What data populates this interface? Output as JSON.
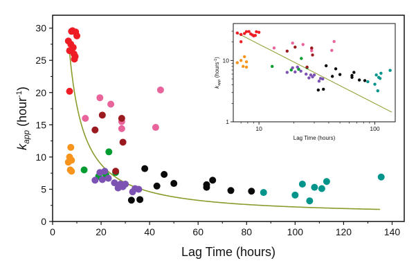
{
  "chart_data": [
    {
      "type": "scatter",
      "xlabel": "Lag Time (hours)",
      "ylabel": "k",
      "ylabel_sub": "app",
      "ylabel_unit_open": " (hour",
      "ylabel_unit_sup": "-1",
      "ylabel_unit_close": ")",
      "xlim": [
        0,
        145
      ],
      "ylim": [
        0,
        32
      ],
      "xticks": [
        "0",
        "20",
        "40",
        "60",
        "80",
        "100",
        "120",
        "140"
      ],
      "yticks": [
        "0",
        "5",
        "10",
        "15",
        "20",
        "25",
        "30"
      ],
      "colors": {
        "red": "#ee1c24",
        "orange": "#f7941d",
        "green": "#009c2f",
        "pink": "#e8649b",
        "darkred": "#9b1a20",
        "purple": "#7c52b3",
        "black": "#0a0a0a",
        "teal": "#00948a",
        "curve": "#8c9a2b"
      },
      "series": [
        {
          "color": "red",
          "points": [
            [
              6.5,
              28
            ],
            [
              7,
              26.5
            ],
            [
              7.5,
              27.5
            ],
            [
              7.8,
              29.5
            ],
            [
              8.2,
              29.6
            ],
            [
              8.5,
              27
            ],
            [
              8.8,
              26
            ],
            [
              9,
              25.2
            ],
            [
              9.3,
              25.6
            ],
            [
              9.5,
              29.4
            ],
            [
              10,
              28.8
            ],
            [
              7,
              20.2
            ]
          ]
        },
        {
          "color": "orange",
          "points": [
            [
              6.5,
              9.2
            ],
            [
              7,
              10
            ],
            [
              7.5,
              11.5
            ],
            [
              7.3,
              8
            ],
            [
              7.8,
              7.8
            ],
            [
              7.8,
              9.5
            ]
          ]
        },
        {
          "color": "green",
          "points": [
            [
              13,
              8
            ],
            [
              19,
              7
            ],
            [
              22,
              7.2
            ],
            [
              23.2,
              10.8
            ],
            [
              26,
              7.6
            ]
          ]
        },
        {
          "color": "pink",
          "points": [
            [
              13.5,
              16
            ],
            [
              19.5,
              19.2
            ],
            [
              24,
              18.2
            ],
            [
              28.5,
              15.5
            ],
            [
              28.5,
              14.4
            ],
            [
              42.5,
              14.6
            ],
            [
              44.5,
              20.4
            ]
          ]
        },
        {
          "color": "darkred",
          "points": [
            [
              17.5,
              14.2
            ],
            [
              20.5,
              16.5
            ],
            [
              26,
              7.8
            ],
            [
              28.5,
              16
            ],
            [
              29,
              12.3
            ]
          ]
        },
        {
          "color": "purple",
          "points": [
            [
              17.5,
              6.4
            ],
            [
              19.5,
              7.6
            ],
            [
              20.5,
              6.5
            ],
            [
              21.5,
              7.8
            ],
            [
              23,
              6.7
            ],
            [
              25.5,
              6
            ],
            [
              27,
              5.2
            ],
            [
              28,
              5.8
            ],
            [
              29,
              5.4
            ],
            [
              30,
              5.8
            ],
            [
              33,
              4.6
            ],
            [
              34,
              5.1
            ],
            [
              35.5,
              5
            ]
          ]
        },
        {
          "color": "black",
          "points": [
            [
              32.5,
              3.3
            ],
            [
              36,
              3.4
            ],
            [
              38,
              8.2
            ],
            [
              43,
              5.5
            ],
            [
              46,
              7.3
            ],
            [
              50,
              5.9
            ],
            [
              63.5,
              5.3
            ],
            [
              63.5,
              5.7
            ],
            [
              66,
              6.4
            ],
            [
              73.5,
              4.8
            ],
            [
              82,
              4.7
            ]
          ]
        },
        {
          "color": "teal",
          "points": [
            [
              87,
              4.5
            ],
            [
              100,
              4.1
            ],
            [
              103,
              5.8
            ],
            [
              106,
              3.2
            ],
            [
              108,
              5.3
            ],
            [
              111,
              5.1
            ],
            [
              113,
              6.2
            ],
            [
              135.5,
              6.9
            ]
          ]
        }
      ],
      "fit_curve": {
        "color": "curve",
        "x_start": 7,
        "x_end": 135
      }
    },
    {
      "type": "scatter",
      "scale": "log-log",
      "xlabel": "Lag Time (hours)",
      "ylabel": "k",
      "ylabel_sub": "app",
      "ylabel_unit_open": " (hours",
      "ylabel_unit_sup": "-1",
      "ylabel_unit_close": ")",
      "xlim": [
        6,
        150
      ],
      "ylim": [
        1,
        40
      ],
      "xticks": [
        "10",
        "100"
      ],
      "yticks": [
        "1",
        "10"
      ]
    }
  ]
}
